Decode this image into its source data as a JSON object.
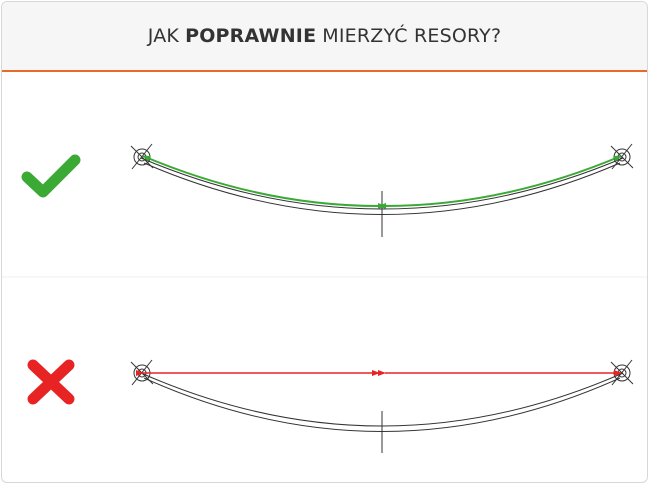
{
  "header": {
    "title_before": "JAK",
    "title_emphasis": "POPRAWNIE",
    "title_after": "MIERZYĆ RESORY?"
  }
}
